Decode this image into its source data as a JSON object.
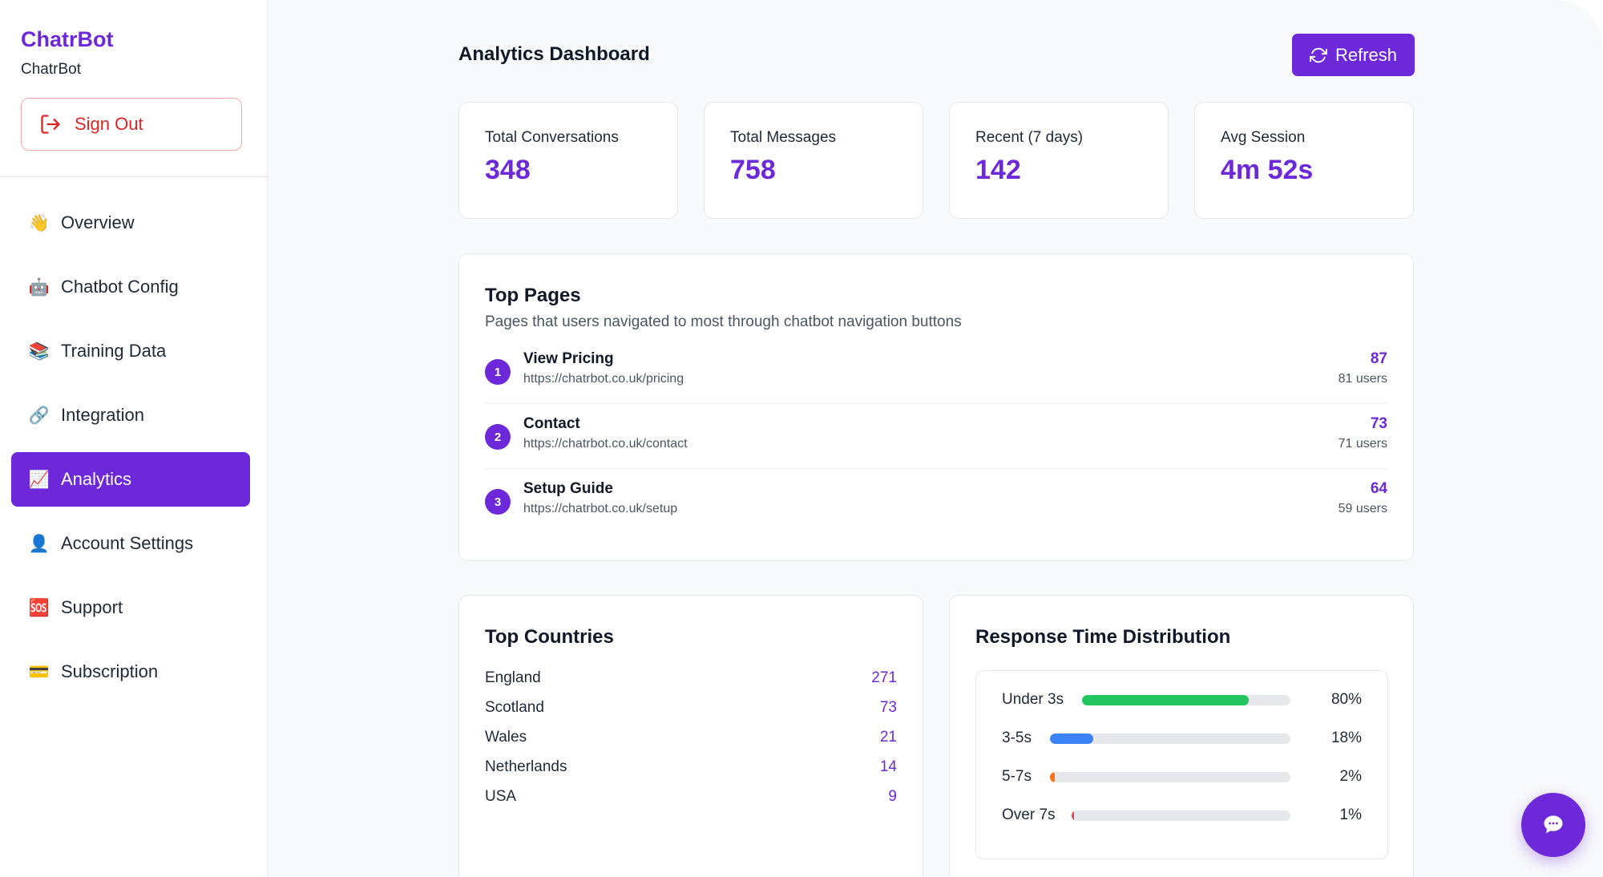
{
  "sidebar": {
    "brand_title": "ChatrBot",
    "brand_subtitle": "ChatrBot",
    "sign_out_label": "Sign Out",
    "items": [
      {
        "emoji": "👋",
        "label": "Overview"
      },
      {
        "emoji": "🤖",
        "label": "Chatbot Config"
      },
      {
        "emoji": "📚",
        "label": "Training Data"
      },
      {
        "emoji": "🔗",
        "label": "Integration"
      },
      {
        "emoji": "📈",
        "label": "Analytics",
        "active": true
      },
      {
        "emoji": "👤",
        "label": "Account Settings"
      },
      {
        "emoji": "🆘",
        "label": "Support"
      },
      {
        "emoji": "💳",
        "label": "Subscription"
      }
    ]
  },
  "header": {
    "title": "Analytics Dashboard",
    "refresh_label": "Refresh"
  },
  "stats": [
    {
      "label": "Total Conversations",
      "value": "348"
    },
    {
      "label": "Total Messages",
      "value": "758"
    },
    {
      "label": "Recent (7 days)",
      "value": "142"
    },
    {
      "label": "Avg Session",
      "value": "4m 52s"
    }
  ],
  "top_pages": {
    "title": "Top Pages",
    "subtitle": "Pages that users navigated to most through chatbot navigation buttons",
    "rows": [
      {
        "rank": "1",
        "name": "View Pricing",
        "url": "https://chatrbot.co.uk/pricing",
        "count": "87",
        "users": "81 users"
      },
      {
        "rank": "2",
        "name": "Contact",
        "url": "https://chatrbot.co.uk/contact",
        "count": "73",
        "users": "71 users"
      },
      {
        "rank": "3",
        "name": "Setup Guide",
        "url": "https://chatrbot.co.uk/setup",
        "count": "64",
        "users": "59 users"
      }
    ]
  },
  "top_countries": {
    "title": "Top Countries",
    "rows": [
      {
        "name": "England",
        "value": "271"
      },
      {
        "name": "Scotland",
        "value": "73"
      },
      {
        "name": "Wales",
        "value": "21"
      },
      {
        "name": "Netherlands",
        "value": "14"
      },
      {
        "name": "USA",
        "value": "9"
      }
    ]
  },
  "response_time": {
    "title": "Response Time Distribution",
    "rows": [
      {
        "label": "Under 3s",
        "pct": "80%",
        "color": "#22c55e"
      },
      {
        "label": "3-5s",
        "pct": "18%",
        "color": "#3b82f6"
      },
      {
        "label": "5-7s",
        "pct": "2%",
        "color": "#f97316"
      },
      {
        "label": "Over 7s",
        "pct": "1%",
        "color": "#ef4444"
      }
    ]
  },
  "colors": {
    "accent": "#6d28d9",
    "danger": "#dc2626"
  }
}
